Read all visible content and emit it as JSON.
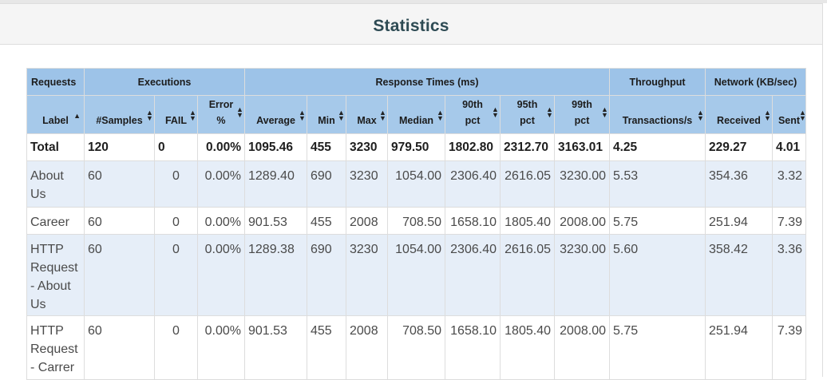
{
  "panel": {
    "title": "Statistics"
  },
  "groups": {
    "requests": "Requests",
    "executions": "Executions",
    "response_times": "Response Times (ms)",
    "throughput": "Throughput",
    "network": "Network (KB/sec)"
  },
  "columns": [
    {
      "label": "Label"
    },
    {
      "label": "#Samples"
    },
    {
      "label": "FAIL"
    },
    {
      "label_line1": "Error",
      "label_line2": "%"
    },
    {
      "label": "Average"
    },
    {
      "label": "Min"
    },
    {
      "label": "Max"
    },
    {
      "label": "Median"
    },
    {
      "label_line1": "90th",
      "label_line2": "pct"
    },
    {
      "label_line1": "95th",
      "label_line2": "pct"
    },
    {
      "label_line1": "99th",
      "label_line2": "pct"
    },
    {
      "label": "Transactions/s"
    },
    {
      "label": "Received"
    },
    {
      "label": "Sent"
    }
  ],
  "total": {
    "label": "Total",
    "samples": "120",
    "fail": "0",
    "error": "0.00%",
    "average": "1095.46",
    "min": "455",
    "max": "3230",
    "median": "979.50",
    "p90": "1802.80",
    "p95": "2312.70",
    "p99": "3163.01",
    "tps": "4.25",
    "received": "229.27",
    "sent": "4.01"
  },
  "rows": [
    {
      "label_lines": [
        "About",
        "Us"
      ],
      "samples": "60",
      "fail": "0",
      "error": "0.00%",
      "average": "1289.40",
      "min": "690",
      "max": "3230",
      "median": "1054.00",
      "p90": "2306.40",
      "p95": "2616.05",
      "p99": "3230.00",
      "tps": "5.53",
      "received": "354.36",
      "sent": "3.32"
    },
    {
      "label_lines": [
        "Career"
      ],
      "samples": "60",
      "fail": "0",
      "error": "0.00%",
      "average": "901.53",
      "min": "455",
      "max": "2008",
      "median": "708.50",
      "p90": "1658.10",
      "p95": "1805.40",
      "p99": "2008.00",
      "tps": "5.75",
      "received": "251.94",
      "sent": "7.39"
    },
    {
      "label_lines": [
        "HTTP",
        "Request",
        "- About",
        "Us"
      ],
      "samples": "60",
      "fail": "0",
      "error": "0.00%",
      "average": "1289.38",
      "min": "690",
      "max": "3230",
      "median": "1054.00",
      "p90": "2306.40",
      "p95": "2616.05",
      "p99": "3230.00",
      "tps": "5.60",
      "received": "358.42",
      "sent": "3.36"
    },
    {
      "label_lines": [
        "HTTP",
        "Request",
        "- Carrer"
      ],
      "samples": "60",
      "fail": "0",
      "error": "0.00%",
      "average": "901.53",
      "min": "455",
      "max": "2008",
      "median": "708.50",
      "p90": "1658.10",
      "p95": "1805.40",
      "p99": "2008.00",
      "tps": "5.75",
      "received": "251.94",
      "sent": "7.39"
    }
  ]
}
